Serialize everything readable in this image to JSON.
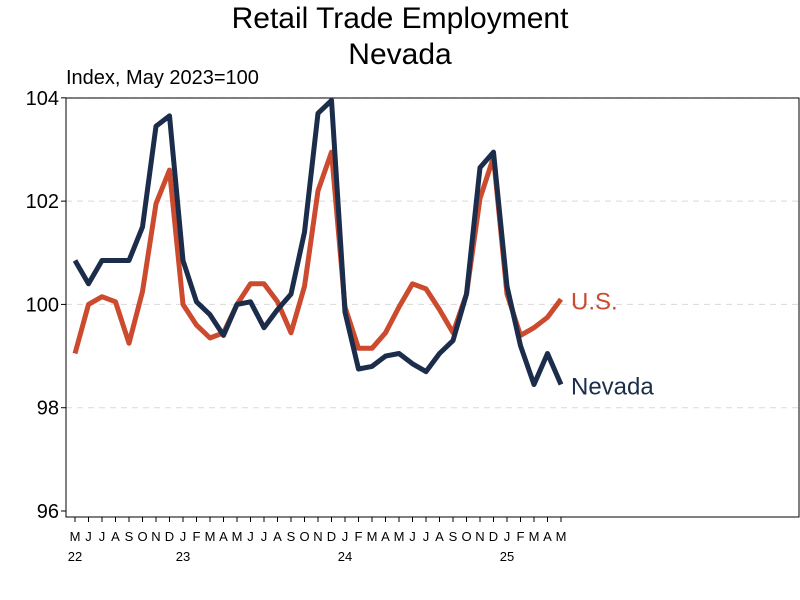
{
  "chart_data": {
    "type": "line",
    "title": "Retail Trade Employment",
    "subtitle": "Nevada",
    "ylabel": "Index, May 2023=100",
    "ylim": [
      96,
      104
    ],
    "yticks": [
      96,
      98,
      100,
      102,
      104
    ],
    "grid": true,
    "month_labels": [
      "M",
      "J",
      "J",
      "A",
      "S",
      "O",
      "N",
      "D",
      "J",
      "F",
      "M",
      "A",
      "M",
      "J",
      "J",
      "A",
      "S",
      "O",
      "N",
      "D",
      "J",
      "F",
      "M",
      "A",
      "M",
      "J",
      "J",
      "A",
      "S",
      "O",
      "N",
      "D",
      "J",
      "F",
      "M",
      "A",
      "M"
    ],
    "year_labels": [
      {
        "label": "22",
        "index": 0
      },
      {
        "label": "23",
        "index": 8
      },
      {
        "label": "24",
        "index": 20
      },
      {
        "label": "25",
        "index": 32
      }
    ],
    "x": [
      "2022-05",
      "2022-06",
      "2022-07",
      "2022-08",
      "2022-09",
      "2022-10",
      "2022-11",
      "2022-12",
      "2023-01",
      "2023-02",
      "2023-03",
      "2023-04",
      "2023-05",
      "2023-06",
      "2023-07",
      "2023-08",
      "2023-09",
      "2023-10",
      "2023-11",
      "2023-12",
      "2024-01",
      "2024-02",
      "2024-03",
      "2024-04",
      "2024-05",
      "2024-06",
      "2024-07",
      "2024-08",
      "2024-09",
      "2024-10",
      "2024-11",
      "2024-12",
      "2025-01",
      "2025-02",
      "2025-03",
      "2025-04",
      "2025-05"
    ],
    "series": [
      {
        "name": "U.S.",
        "color": "#cc4a2e",
        "values": [
          99.05,
          100.0,
          100.15,
          100.05,
          99.25,
          100.25,
          101.95,
          102.6,
          100.0,
          99.6,
          99.35,
          99.45,
          100.0,
          100.4,
          100.4,
          100.05,
          99.45,
          100.35,
          102.2,
          102.95,
          99.95,
          99.15,
          99.15,
          99.45,
          99.95,
          100.4,
          100.3,
          99.9,
          99.45,
          100.2,
          102.05,
          102.85,
          100.2,
          99.4,
          99.55,
          99.75,
          100.1
        ]
      },
      {
        "name": "Nevada",
        "color": "#1b2d4a",
        "values": [
          100.85,
          100.4,
          100.85,
          100.85,
          100.85,
          101.5,
          103.45,
          103.65,
          100.85,
          100.05,
          99.8,
          99.4,
          100.0,
          100.05,
          99.55,
          99.9,
          100.2,
          101.4,
          103.7,
          103.95,
          99.85,
          98.75,
          98.8,
          99.0,
          99.05,
          98.85,
          98.7,
          99.05,
          99.3,
          100.2,
          102.65,
          102.95,
          100.35,
          99.2,
          98.45,
          99.05,
          98.45
        ]
      }
    ]
  }
}
